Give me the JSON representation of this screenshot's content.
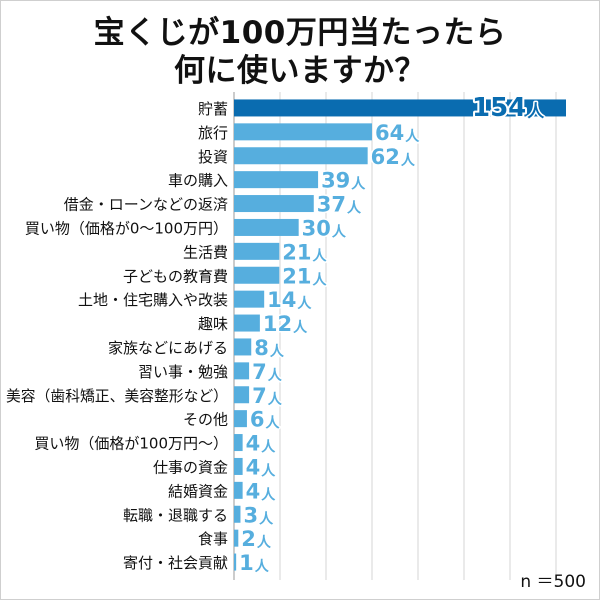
{
  "title_lines": [
    "宝くじが100万円当たったら",
    "何に使いますか？"
  ],
  "note": "n ＝500",
  "unit": "人",
  "colors": {
    "highlight": "#0a6cb0",
    "bar": "#56aede",
    "grid": "#d6d6d6",
    "text": "#111111"
  },
  "chart_data": {
    "type": "bar",
    "orientation": "horizontal",
    "title": "宝くじが100万円当たったら何に使いますか？",
    "categories": [
      "貯蓄",
      "旅行",
      "投資",
      "車の購入",
      "借金・ローンなどの返済",
      "買い物（価格が0〜100万円）",
      "生活費",
      "子どもの教育費",
      "土地・住宅購入や改装",
      "趣味",
      "家族などにあげる",
      "習い事・勉強",
      "美容（歯科矯正、美容整形など）",
      "その他",
      "買い物（価格が100万円〜）",
      "仕事の資金",
      "結婚資金",
      "転職・退職する",
      "食事",
      "寄付・社会貢献"
    ],
    "values": [
      154,
      64,
      62,
      39,
      37,
      30,
      21,
      21,
      14,
      12,
      8,
      7,
      7,
      6,
      4,
      4,
      4,
      3,
      2,
      1
    ],
    "xlim": [
      0,
      154
    ],
    "grid": true,
    "highlight_index": 0
  }
}
